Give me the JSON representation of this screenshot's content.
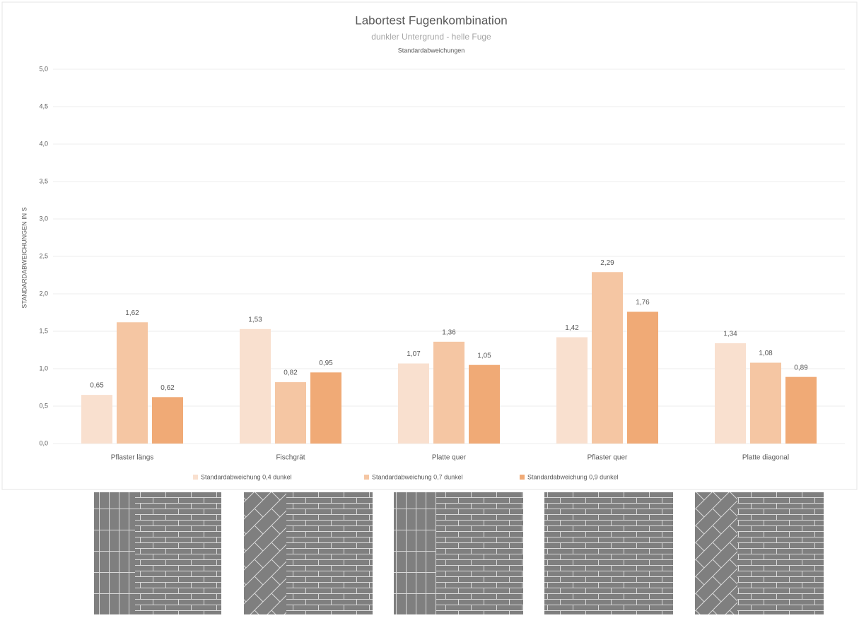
{
  "chart_data": {
    "type": "bar",
    "title": "Labortest Fugenkombination",
    "subtitle": "dunkler Untergrund - helle Fuge",
    "subtitle2": "Standardabweichungen",
    "y_label": "STANDARDABWEICHUNGEN IN S",
    "categories": [
      "Pflaster längs",
      "Fischgrät",
      "Platte quer",
      "Pflaster quer",
      "Platte diagonal"
    ],
    "series": [
      {
        "name": "Standardabweichung 0,4 dunkel",
        "color": "#f9e0cf",
        "values": [
          0.65,
          1.53,
          1.07,
          1.42,
          1.34
        ],
        "value_labels": [
          "0,65",
          "1,53",
          "1,07",
          "1,42",
          "1,34"
        ]
      },
      {
        "name": "Standardabweichung 0,7 dunkel",
        "color": "#f5c6a3",
        "values": [
          1.62,
          0.82,
          1.36,
          2.29,
          1.08
        ],
        "value_labels": [
          "1,62",
          "0,82",
          "1,36",
          "2,29",
          "1,08"
        ]
      },
      {
        "name": "Standardabweichung 0,9 dunkel",
        "color": "#f0aa76",
        "values": [
          0.62,
          0.95,
          1.05,
          1.76,
          0.89
        ],
        "value_labels": [
          "0,62",
          "0,95",
          "1,05",
          "1,76",
          "0,89"
        ]
      }
    ],
    "ylim": [
      0,
      5
    ],
    "yticks": [
      {
        "value": 0,
        "label": "0,0"
      },
      {
        "value": 0.5,
        "label": "0,5"
      },
      {
        "value": 1,
        "label": "1,0"
      },
      {
        "value": 1.5,
        "label": "1,5"
      },
      {
        "value": 2,
        "label": "2,0"
      },
      {
        "value": 2.5,
        "label": "2,5"
      },
      {
        "value": 3,
        "label": "3,0"
      },
      {
        "value": 3.5,
        "label": "3,5"
      },
      {
        "value": 4,
        "label": "4,0"
      },
      {
        "value": 4.5,
        "label": "4,5"
      },
      {
        "value": 5,
        "label": "5,0"
      }
    ],
    "grid": true
  }
}
